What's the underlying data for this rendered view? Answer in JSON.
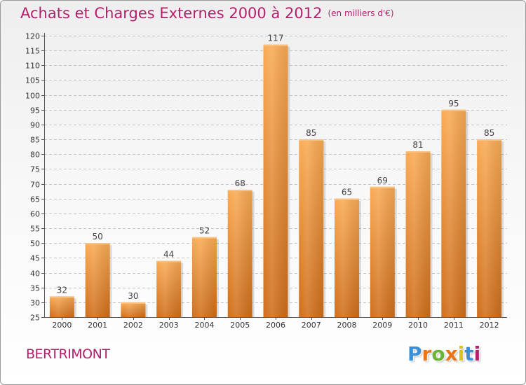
{
  "header": {
    "title": "Achats et Charges Externes 2000 à 2012",
    "subtitle": "(en milliers d'€)"
  },
  "footer": {
    "commune": "BERTRIMONT",
    "logo": {
      "letters": [
        "P",
        "r",
        "o",
        "x",
        "i",
        "t",
        "i"
      ],
      "colors": [
        "#3a8fd6",
        "#e8751a",
        "#6ab43a",
        "#e8751a",
        "#d9c21a",
        "#3a8fd6",
        "#b31f6a"
      ]
    }
  },
  "colors": {
    "accent": "#b31f6a",
    "bar_light": "#f7a54e",
    "bar_dark": "#cf6f1c",
    "grid": "#c8c8c8",
    "text": "#333333"
  },
  "chart_data": {
    "type": "bar",
    "title": "Achats et Charges Externes 2000 à 2012",
    "categories": [
      "2000",
      "2001",
      "2002",
      "2003",
      "2004",
      "2005",
      "2006",
      "2007",
      "2008",
      "2009",
      "2010",
      "2011",
      "2012"
    ],
    "values": [
      32,
      50,
      30,
      44,
      52,
      68,
      117,
      85,
      65,
      69,
      81,
      95,
      85
    ],
    "ylim": [
      25,
      120
    ],
    "yticks": [
      25,
      30,
      35,
      40,
      45,
      50,
      55,
      60,
      65,
      70,
      75,
      80,
      85,
      90,
      95,
      100,
      105,
      110,
      115,
      120
    ],
    "xlabel": "",
    "ylabel": "",
    "grid": true,
    "legend": "none"
  }
}
